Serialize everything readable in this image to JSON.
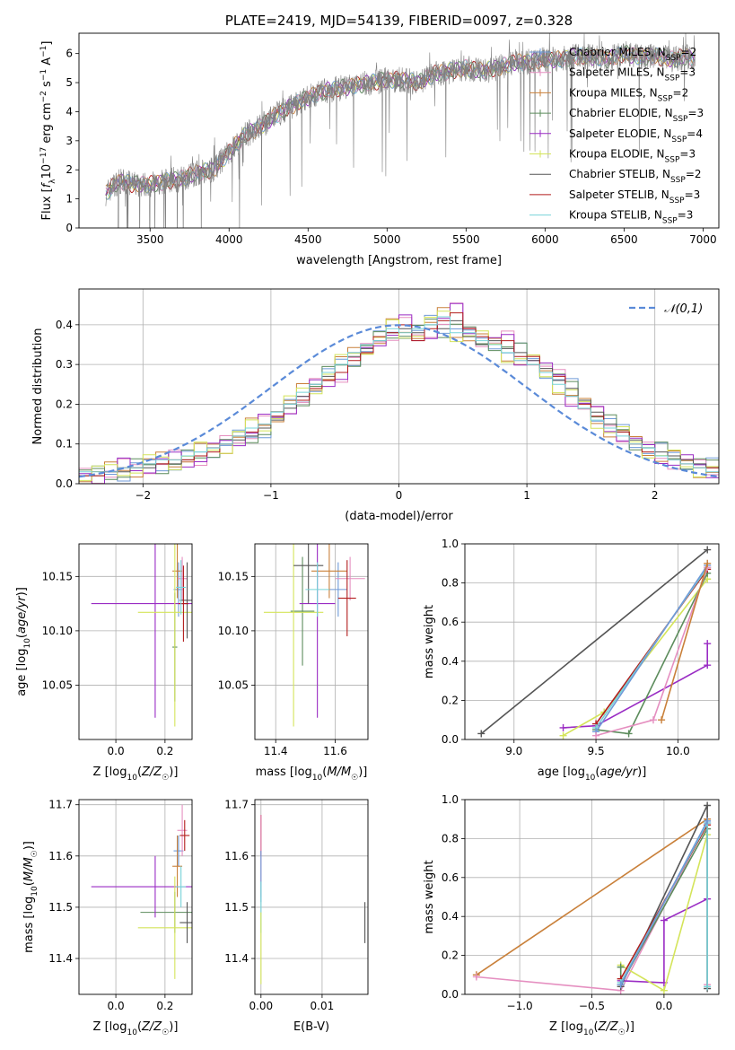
{
  "colors": {
    "chabrier_miles": "#6f9ad8",
    "salpeter_miles": "#e58fc0",
    "kroupa_miles": "#c9803a",
    "chabrier_elodie": "#5c8c5c",
    "salpeter_elodie": "#9a2cc4",
    "kroupa_elodie": "#d4e45a",
    "chabrier_stelib": "#555555",
    "salpeter_stelib": "#b21c1c",
    "kroupa_stelib": "#77d3d8",
    "gauss": "#5a8ad8",
    "spectrum": "#808080"
  },
  "chart_data": [
    {
      "type": "line",
      "title": "PLATE=2419, MJD=54139, FIBERID=0097, z=0.328",
      "xlabel": "wavelength [Angstrom, rest frame]",
      "ylabel": "Flux [f_λ 10^-17 erg cm^-2 s^-1 A^-1]",
      "xlim": [
        3050,
        7100
      ],
      "ylim": [
        0,
        6.7
      ],
      "xticks": [
        3500,
        4000,
        4500,
        5000,
        5500,
        6000,
        6500,
        7000
      ],
      "yticks": [
        0,
        1,
        2,
        3,
        4,
        5,
        6
      ],
      "x": [
        3220,
        3300,
        3400,
        3500,
        3600,
        3700,
        3800,
        3900,
        4000,
        4100,
        4200,
        4300,
        4400,
        4500,
        4600,
        4700,
        4800,
        4900,
        5000,
        5100,
        5200,
        5300,
        5400,
        5500,
        5600,
        5700,
        5800,
        5900,
        6000,
        6100,
        6200,
        6300,
        6400,
        6500,
        6600,
        6700,
        6800,
        6900,
        6950
      ],
      "data_flux": [
        1.2,
        1.6,
        1.5,
        1.5,
        1.6,
        1.7,
        1.9,
        2.0,
        2.6,
        3.2,
        3.5,
        3.9,
        4.2,
        4.5,
        4.7,
        4.8,
        4.9,
        5.0,
        5.1,
        5.1,
        5.0,
        5.3,
        5.4,
        5.5,
        5.4,
        5.5,
        5.7,
        5.7,
        5.8,
        5.8,
        5.9,
        5.9,
        5.8,
        6.0,
        5.9,
        5.9,
        5.8,
        5.9,
        5.8
      ],
      "legend": [
        {
          "label": "Chabrier MILES, N",
          "sub": "SSP",
          "suffix": "=2",
          "color_key": "chabrier_miles",
          "marker": true
        },
        {
          "label": "Salpeter MILES, N",
          "sub": "SSP",
          "suffix": "=3",
          "color_key": "salpeter_miles",
          "marker": true
        },
        {
          "label": "Kroupa MILES, N",
          "sub": "SSP",
          "suffix": "=2",
          "color_key": "kroupa_miles",
          "marker": true
        },
        {
          "label": "Chabrier ELODIE, N",
          "sub": "SSP",
          "suffix": "=3",
          "color_key": "chabrier_elodie",
          "marker": true
        },
        {
          "label": "Salpeter ELODIE, N",
          "sub": "SSP",
          "suffix": "=4",
          "color_key": "salpeter_elodie",
          "marker": true
        },
        {
          "label": "Kroupa ELODIE, N",
          "sub": "SSP",
          "suffix": "=3",
          "color_key": "kroupa_elodie",
          "marker": true
        },
        {
          "label": "Chabrier STELIB, N",
          "sub": "SSP",
          "suffix": "=2",
          "color_key": "chabrier_stelib",
          "marker": false
        },
        {
          "label": "Salpeter STELIB, N",
          "sub": "SSP",
          "suffix": "=3",
          "color_key": "salpeter_stelib",
          "marker": false
        },
        {
          "label": "Kroupa STELIB, N",
          "sub": "SSP",
          "suffix": "=3",
          "color_key": "kroupa_stelib",
          "marker": false
        }
      ]
    },
    {
      "type": "histogram",
      "xlabel": "(data-model)/error",
      "ylabel": "Normed distribution",
      "xlim": [
        -2.5,
        2.5
      ],
      "ylim": [
        0,
        0.49
      ],
      "xticks": [
        -2,
        -1,
        0,
        1,
        2
      ],
      "yticks": [
        0.0,
        0.1,
        0.2,
        0.3,
        0.4
      ],
      "bin_edges": [
        -2.5,
        2.5
      ],
      "bin_width": 0.1,
      "series_heights": [
        [
          0.02,
          0.02,
          0.03,
          0.03,
          0.04,
          0.04,
          0.05,
          0.05,
          0.06,
          0.07,
          0.09,
          0.1,
          0.11,
          0.12,
          0.14,
          0.16,
          0.19,
          0.22,
          0.25,
          0.27,
          0.3,
          0.32,
          0.34,
          0.36,
          0.38,
          0.39,
          0.38,
          0.4,
          0.39,
          0.41,
          0.37,
          0.35,
          0.36,
          0.34,
          0.33,
          0.31,
          0.29,
          0.26,
          0.24,
          0.21,
          0.18,
          0.15,
          0.13,
          0.11,
          0.09,
          0.08,
          0.07,
          0.06,
          0.05,
          0.04
        ],
        [
          0.02,
          0.02,
          0.03,
          0.04,
          0.04,
          0.05,
          0.05,
          0.06,
          0.06,
          0.07,
          0.08,
          0.1,
          0.12,
          0.13,
          0.15,
          0.17,
          0.2,
          0.21,
          0.24,
          0.26,
          0.28,
          0.31,
          0.33,
          0.37,
          0.38,
          0.4,
          0.36,
          0.39,
          0.41,
          0.43,
          0.39,
          0.37,
          0.35,
          0.36,
          0.32,
          0.32,
          0.28,
          0.27,
          0.22,
          0.2,
          0.17,
          0.14,
          0.13,
          0.1,
          0.08,
          0.07,
          0.06,
          0.05,
          0.04,
          0.04
        ],
        [
          0.03,
          0.03,
          0.03,
          0.04,
          0.04,
          0.05,
          0.06,
          0.06,
          0.07,
          0.08,
          0.09,
          0.1,
          0.12,
          0.14,
          0.15,
          0.18,
          0.2,
          0.23,
          0.25,
          0.28,
          0.3,
          0.33,
          0.35,
          0.36,
          0.39,
          0.38,
          0.39,
          0.4,
          0.42,
          0.38,
          0.38,
          0.36,
          0.35,
          0.33,
          0.31,
          0.3,
          0.28,
          0.25,
          0.22,
          0.19,
          0.16,
          0.14,
          0.12,
          0.1,
          0.09,
          0.07,
          0.06,
          0.05,
          0.04,
          0.03
        ]
      ],
      "series_color_keys": [
        "chabrier_stelib",
        "salpeter_stelib",
        "kroupa_stelib"
      ],
      "gauss_label": "𝒩(0,1)"
    },
    {
      "type": "scatter",
      "xlabel_main": "Z [log",
      "xlabel_tail": "(Z/Z",
      "xlabel": "Z [log10(Z/Z☉)]",
      "ylabel": "age  [log10(age/yr)]",
      "xlim": [
        -0.15,
        0.31
      ],
      "ylim": [
        10.0,
        10.18
      ],
      "xticks": [
        0.0,
        0.2
      ],
      "yticks": [
        10.05,
        10.1,
        10.15
      ],
      "points": [
        {
          "color_key": "chabrier_miles",
          "x": 0.255,
          "y": 10.138,
          "xerr": 0.02,
          "yerr": 0.025
        },
        {
          "color_key": "salpeter_miles",
          "x": 0.27,
          "y": 10.148,
          "xerr": 0.02,
          "yerr": 0.02
        },
        {
          "color_key": "kroupa_miles",
          "x": 0.25,
          "y": 10.155,
          "xerr": 0.02,
          "yerr": 0.025
        },
        {
          "color_key": "chabrier_elodie",
          "x": 0.24,
          "y": 10.085,
          "xerr": 0.01,
          "yerr": 0.05
        },
        {
          "color_key": "salpeter_elodie",
          "x": 0.16,
          "y": 10.125,
          "xerr": 0.26,
          "yerr": 0.105
        },
        {
          "color_key": "kroupa_elodie",
          "x": 0.24,
          "y": 10.117,
          "xerr": 0.15,
          "yerr": 0.105
        },
        {
          "color_key": "chabrier_stelib",
          "x": 0.29,
          "y": 10.128,
          "xerr": 0.03,
          "yerr": 0.035
        },
        {
          "color_key": "salpeter_stelib",
          "x": 0.275,
          "y": 10.125,
          "xerr": 0.02,
          "yerr": 0.035
        },
        {
          "color_key": "kroupa_stelib",
          "x": 0.265,
          "y": 10.14,
          "xerr": 0.02,
          "yerr": 0.025
        }
      ]
    },
    {
      "type": "scatter",
      "xlabel": "mass [log10(M/M☉)]",
      "xlim": [
        11.33,
        11.71
      ],
      "ylim": [
        10.0,
        10.18
      ],
      "xticks": [
        11.4,
        11.6
      ],
      "yticks": [
        10.05,
        10.1,
        10.15
      ],
      "points": [
        {
          "color_key": "chabrier_miles",
          "x": 11.61,
          "y": 10.138,
          "xerr": 0.03,
          "yerr": 0.025
        },
        {
          "color_key": "salpeter_miles",
          "x": 11.65,
          "y": 10.148,
          "xerr": 0.05,
          "yerr": 0.02
        },
        {
          "color_key": "kroupa_miles",
          "x": 11.58,
          "y": 10.155,
          "xerr": 0.06,
          "yerr": 0.025
        },
        {
          "color_key": "chabrier_elodie",
          "x": 11.49,
          "y": 10.118,
          "xerr": 0.04,
          "yerr": 0.05
        },
        {
          "color_key": "salpeter_elodie",
          "x": 11.54,
          "y": 10.125,
          "xerr": 0.06,
          "yerr": 0.105
        },
        {
          "color_key": "kroupa_elodie",
          "x": 11.46,
          "y": 10.117,
          "xerr": 0.1,
          "yerr": 0.105
        },
        {
          "color_key": "chabrier_stelib",
          "x": 11.51,
          "y": 10.16,
          "xerr": 0.05,
          "yerr": 0.035
        },
        {
          "color_key": "salpeter_stelib",
          "x": 11.64,
          "y": 10.13,
          "xerr": 0.03,
          "yerr": 0.035
        },
        {
          "color_key": "kroupa_stelib",
          "x": 11.54,
          "y": 10.138,
          "xerr": 0.04,
          "yerr": 0.025
        }
      ]
    },
    {
      "type": "line",
      "xlabel": "age  [log10(age/yr)]",
      "ylabel": "mass weight",
      "xlim": [
        8.7,
        10.25
      ],
      "ylim": [
        0.0,
        1.0
      ],
      "xticks": [
        9.0,
        9.5,
        10.0
      ],
      "yticks": [
        0.0,
        0.2,
        0.4,
        0.6,
        0.8,
        1.0
      ],
      "series": [
        {
          "color_key": "chabrier_stelib",
          "x": [
            8.8,
            10.18
          ],
          "y": [
            0.03,
            0.97
          ]
        },
        {
          "color_key": "salpeter_elodie",
          "x": [
            9.3,
            9.5,
            10.18,
            10.18
          ],
          "y": [
            0.06,
            0.07,
            0.38,
            0.49
          ]
        },
        {
          "color_key": "kroupa_elodie",
          "x": [
            9.3,
            9.55,
            10.18
          ],
          "y": [
            0.02,
            0.14,
            0.82
          ]
        },
        {
          "color_key": "chabrier_elodie",
          "x": [
            9.5,
            9.7,
            10.18
          ],
          "y": [
            0.05,
            0.03,
            0.85
          ]
        },
        {
          "color_key": "salpeter_stelib",
          "x": [
            9.5,
            10.18
          ],
          "y": [
            0.08,
            0.87
          ]
        },
        {
          "color_key": "kroupa_stelib",
          "x": [
            9.5,
            10.18
          ],
          "y": [
            0.06,
            0.88
          ]
        },
        {
          "color_key": "chabrier_miles",
          "x": [
            9.5,
            10.18
          ],
          "y": [
            0.04,
            0.89
          ]
        },
        {
          "color_key": "salpeter_miles",
          "x": [
            9.5,
            9.85,
            10.18
          ],
          "y": [
            0.02,
            0.1,
            0.88
          ]
        },
        {
          "color_key": "kroupa_miles",
          "x": [
            9.9,
            10.18
          ],
          "y": [
            0.1,
            0.9
          ]
        }
      ]
    },
    {
      "type": "scatter",
      "xlabel": "Z [log10(Z/Z☉)]",
      "ylabel": "mass [log10(M/M☉)]",
      "xlim": [
        -0.15,
        0.31
      ],
      "ylim": [
        11.33,
        11.71
      ],
      "xticks": [
        0.0,
        0.2
      ],
      "yticks": [
        11.4,
        11.5,
        11.6,
        11.7
      ],
      "points": [
        {
          "color_key": "chabrier_miles",
          "x": 0.255,
          "y": 11.61,
          "xerr": 0.02,
          "yerr": 0.03
        },
        {
          "color_key": "salpeter_miles",
          "x": 0.27,
          "y": 11.65,
          "xerr": 0.02,
          "yerr": 0.05
        },
        {
          "color_key": "kroupa_miles",
          "x": 0.25,
          "y": 11.58,
          "xerr": 0.02,
          "yerr": 0.06
        },
        {
          "color_key": "chabrier_elodie",
          "x": 0.24,
          "y": 11.49,
          "xerr": 0.14,
          "yerr": 0.04
        },
        {
          "color_key": "salpeter_elodie",
          "x": 0.16,
          "y": 11.54,
          "xerr": 0.26,
          "yerr": 0.06
        },
        {
          "color_key": "kroupa_elodie",
          "x": 0.24,
          "y": 11.46,
          "xerr": 0.15,
          "yerr": 0.1
        },
        {
          "color_key": "chabrier_stelib",
          "x": 0.29,
          "y": 11.47,
          "xerr": 0.03,
          "yerr": 0.04
        },
        {
          "color_key": "salpeter_stelib",
          "x": 0.28,
          "y": 11.64,
          "xerr": 0.02,
          "yerr": 0.03
        },
        {
          "color_key": "kroupa_stelib",
          "x": 0.265,
          "y": 11.54,
          "xerr": 0.02,
          "yerr": 0.04
        }
      ]
    },
    {
      "type": "scatter",
      "xlabel": "E(B-V)",
      "xlim": [
        -0.001,
        0.0175
      ],
      "ylim": [
        11.33,
        11.71
      ],
      "xticks": [
        0.0,
        0.01
      ],
      "xtick_labels": [
        "0.00",
        "0.01"
      ],
      "yticks": [
        11.4,
        11.5,
        11.6,
        11.7
      ],
      "points": [
        {
          "color_key": "salpeter_stelib",
          "x": 0.0,
          "y": 11.64,
          "xerr": 0,
          "yerr": 0.04
        },
        {
          "color_key": "salpeter_miles",
          "x": 0.0,
          "y": 11.6,
          "xerr": 0,
          "yerr": 0.08
        },
        {
          "color_key": "chabrier_miles",
          "x": 0.0,
          "y": 11.56,
          "xerr": 0,
          "yerr": 0.05
        },
        {
          "color_key": "kroupa_stelib",
          "x": 0.0,
          "y": 11.5,
          "xerr": 0,
          "yerr": 0.05
        },
        {
          "color_key": "kroupa_elodie",
          "x": 0.0,
          "y": 11.42,
          "xerr": 0,
          "yerr": 0.07
        },
        {
          "color_key": "chabrier_stelib",
          "x": 0.017,
          "y": 11.47,
          "xerr": 0,
          "yerr": 0.04
        }
      ]
    },
    {
      "type": "line",
      "xlabel": "Z [log10(Z/Z☉)]",
      "ylabel": "mass weight",
      "xlim": [
        -1.38,
        0.38
      ],
      "ylim": [
        0.0,
        1.0
      ],
      "xticks": [
        -1.0,
        -0.5,
        0.0
      ],
      "xtick_labels": [
        "−1.0",
        "−0.5",
        "0.0"
      ],
      "yticks": [
        0.0,
        0.2,
        0.4,
        0.6,
        0.8,
        1.0
      ],
      "series": [
        {
          "color_key": "kroupa_miles",
          "x": [
            -1.3,
            0.3
          ],
          "y": [
            0.1,
            0.9
          ]
        },
        {
          "color_key": "salpeter_miles",
          "x": [
            -1.3,
            -0.3,
            0.3,
            0.3
          ],
          "y": [
            0.09,
            0.02,
            0.88,
            0.05
          ]
        },
        {
          "color_key": "salpeter_elodie",
          "x": [
            -0.3,
            0.0,
            0.0,
            0.3
          ],
          "y": [
            0.07,
            0.06,
            0.38,
            0.49
          ]
        },
        {
          "color_key": "kroupa_elodie",
          "x": [
            -0.3,
            0.0,
            0.3
          ],
          "y": [
            0.15,
            0.02,
            0.82
          ]
        },
        {
          "color_key": "chabrier_elodie",
          "x": [
            -0.3,
            -0.3,
            0.3
          ],
          "y": [
            0.14,
            0.05,
            0.85
          ]
        },
        {
          "color_key": "chabrier_stelib",
          "x": [
            -0.3,
            0.3,
            0.3
          ],
          "y": [
            0.04,
            0.97,
            0.03
          ]
        },
        {
          "color_key": "salpeter_stelib",
          "x": [
            -0.3,
            0.3
          ],
          "y": [
            0.08,
            0.87
          ]
        },
        {
          "color_key": "kroupa_stelib",
          "x": [
            -0.3,
            0.3,
            0.3
          ],
          "y": [
            0.06,
            0.88,
            0.04
          ]
        },
        {
          "color_key": "chabrier_miles",
          "x": [
            -0.3,
            0.3
          ],
          "y": [
            0.05,
            0.89
          ]
        }
      ]
    }
  ]
}
